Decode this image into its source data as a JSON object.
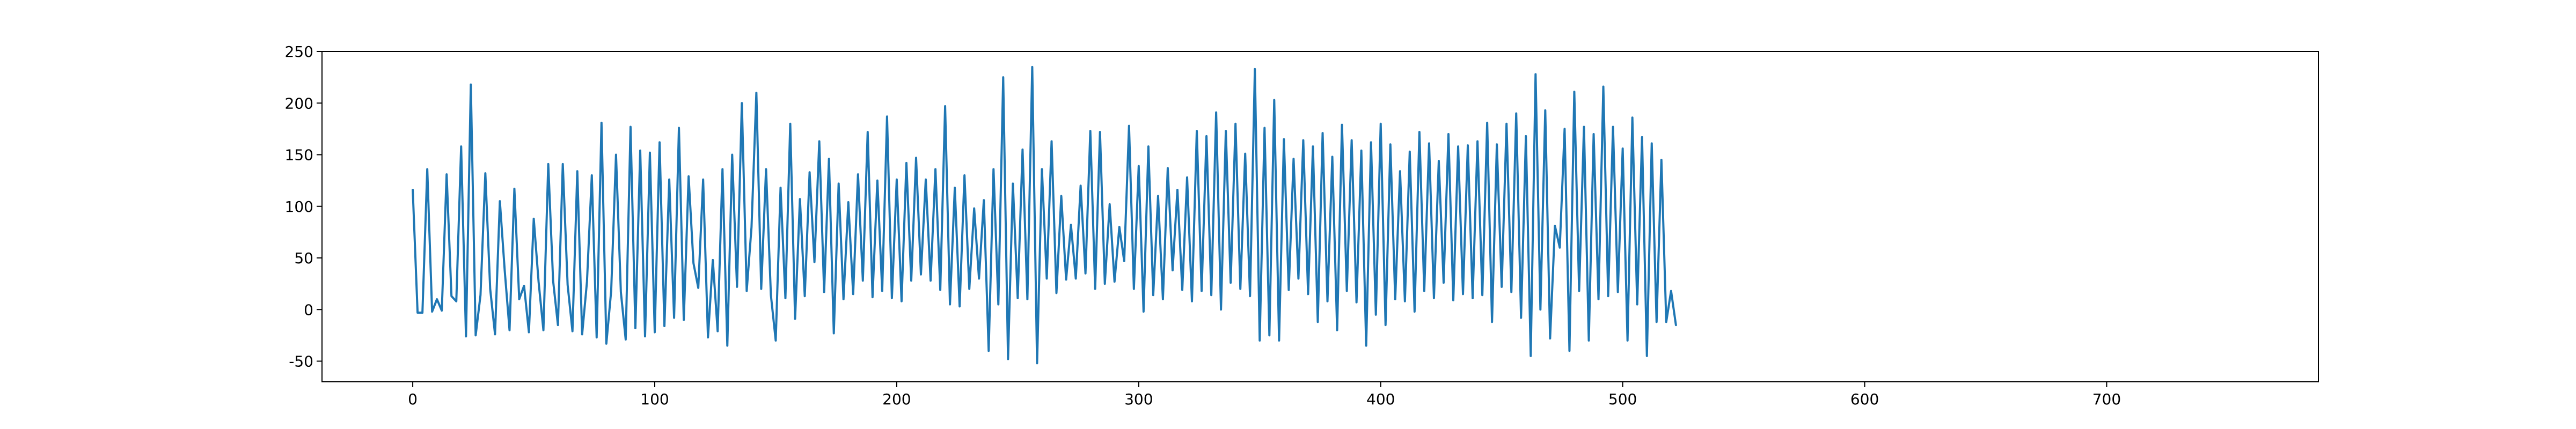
{
  "chart_data": {
    "type": "line",
    "title": "",
    "xlabel": "",
    "ylabel": "",
    "xlim": [
      -37.5,
      787.5
    ],
    "ylim": [
      -70,
      250
    ],
    "x_ticks": [
      0,
      100,
      200,
      300,
      400,
      500,
      600,
      700
    ],
    "y_ticks": [
      -50,
      0,
      50,
      100,
      150,
      200,
      250
    ],
    "grid": false,
    "legend": "none",
    "line_color": "#1f77b4",
    "x_start": 0,
    "x_step": 2,
    "series": [
      {
        "values": [
          116,
          -3,
          -3,
          136,
          -2,
          10,
          -1,
          131,
          13,
          8,
          158,
          -26,
          218,
          -25,
          14,
          132,
          20,
          -24,
          105,
          38,
          -20,
          117,
          10,
          23,
          -22,
          88,
          27,
          -20,
          141,
          28,
          -15,
          141,
          24,
          -21,
          134,
          -24,
          27,
          130,
          -27,
          181,
          -33,
          18,
          150,
          17,
          -29,
          177,
          -18,
          154,
          -26,
          152,
          -22,
          162,
          -16,
          126,
          -8,
          176,
          -10,
          129,
          45,
          21,
          126,
          -27,
          48,
          -21,
          136,
          -35,
          150,
          22,
          200,
          18,
          80,
          210,
          20,
          136,
          14,
          -30,
          118,
          11,
          180,
          -9,
          107,
          13,
          133,
          46,
          163,
          17,
          146,
          -23,
          122,
          10,
          104,
          15,
          131,
          28,
          172,
          12,
          125,
          18,
          187,
          11,
          126,
          8,
          142,
          28,
          147,
          34,
          126,
          28,
          136,
          19,
          197,
          5,
          118,
          3,
          130,
          20,
          98,
          30,
          106,
          -40,
          136,
          5,
          225,
          -48,
          122,
          11,
          155,
          10,
          235,
          -52,
          136,
          30,
          163,
          16,
          110,
          29,
          82,
          30,
          120,
          35,
          173,
          20,
          172,
          25,
          102,
          27,
          80,
          47,
          178,
          20,
          139,
          -2,
          158,
          14,
          110,
          10,
          137,
          38,
          116,
          19,
          128,
          8,
          173,
          18,
          168,
          14,
          191,
          0,
          173,
          26,
          180,
          20,
          151,
          13,
          233,
          -30,
          176,
          -25,
          203,
          -30,
          165,
          19,
          146,
          30,
          164,
          15,
          158,
          -12,
          171,
          8,
          148,
          -20,
          179,
          18,
          164,
          7,
          154,
          -35,
          162,
          -5,
          180,
          -15,
          160,
          10,
          134,
          8,
          153,
          -2,
          172,
          18,
          161,
          11,
          144,
          26,
          170,
          9,
          158,
          15,
          159,
          11,
          163,
          14,
          181,
          -12,
          160,
          22,
          180,
          17,
          190,
          -8,
          168,
          -45,
          228,
          0,
          193,
          -28,
          81,
          60,
          175,
          -40,
          211,
          18,
          177,
          -30,
          170,
          10,
          216,
          13,
          177,
          17,
          156,
          -30,
          186,
          5,
          167,
          -45,
          161,
          -12,
          145,
          -12,
          18,
          -15
        ]
      }
    ]
  }
}
